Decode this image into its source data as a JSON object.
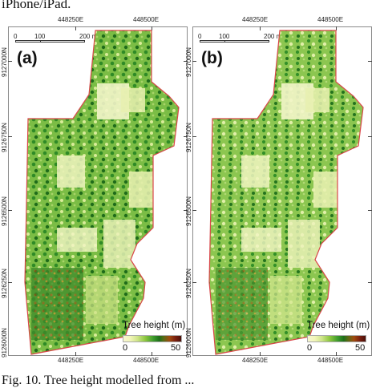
{
  "captions": {
    "top": "iPhone/iPad.",
    "bottom": "Fig. 10. Tree height modelled from ..."
  },
  "panels": [
    {
      "letter": "(a)",
      "easting_labels": [
        "448250E",
        "448500E"
      ],
      "northing_labels": [
        "9127000N",
        "9126750N",
        "9126500N",
        "9126250N",
        "9126000N"
      ],
      "scalebar": {
        "ticks": [
          "0",
          "100",
          "200 m"
        ]
      },
      "legend": {
        "title": "Tree height (m)",
        "min": "0",
        "max": "50"
      }
    },
    {
      "letter": "(b)",
      "easting_labels": [
        "448250E",
        "448500E"
      ],
      "northing_labels": [
        "9127000N",
        "9126750N",
        "9126500N",
        "9126250N",
        "9126000N"
      ],
      "scalebar": {
        "ticks": [
          "0",
          "100",
          "200 m"
        ]
      },
      "legend": {
        "title": "Tree height (m)",
        "min": "0",
        "max": "50"
      }
    }
  ],
  "colors": {
    "boundary": "#d9474a",
    "low_height": "#f5f6c8",
    "mid_height": "#4fa832",
    "high_height": "#1e6b19",
    "max_height": "#6b1a0c"
  }
}
